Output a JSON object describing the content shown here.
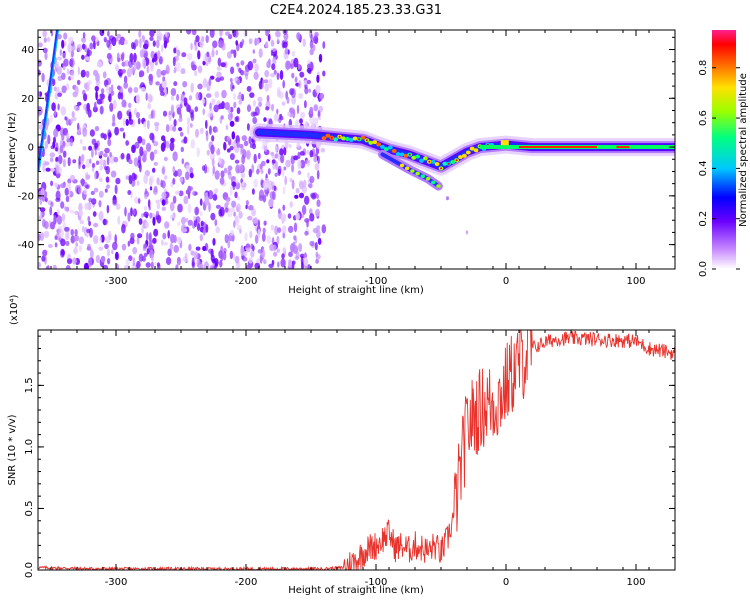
{
  "title": "C2E4.2024.185.23.33.G31",
  "colors": {
    "snr_line": "#e8322c",
    "axis": "#000000",
    "background": "#ffffff"
  },
  "chart_data": [
    {
      "type": "heatmap",
      "xlabel": "Height of straight line (km)",
      "ylabel": "Frequency (Hz)",
      "xlim": [
        -360,
        130
      ],
      "ylim": [
        -50,
        48
      ],
      "xticks": [
        -300,
        -200,
        -100,
        0,
        100
      ],
      "yticks": [
        -40,
        -20,
        0,
        20,
        40
      ],
      "colorbar": {
        "label": "Normalized spectral amplitude",
        "range": [
          0.0,
          0.95
        ],
        "ticks": [
          0.0,
          0.2,
          0.4,
          0.6,
          0.8
        ],
        "colormap": "rainbow (magenta-blue-cyan-green-yellow-orange-red-pink)"
      },
      "features": {
        "noise_region_x": [
          -360,
          -140
        ],
        "noise_amplitude": "0.0-0.25",
        "main_trace": [
          {
            "x": -190,
            "y": 6
          },
          {
            "x": -150,
            "y": 5
          },
          {
            "x": -130,
            "y": 4
          },
          {
            "x": -110,
            "y": 3
          },
          {
            "x": -90,
            "y": -1
          },
          {
            "x": -75,
            "y": -3
          },
          {
            "x": -60,
            "y": -6
          },
          {
            "x": -50,
            "y": -8
          },
          {
            "x": -40,
            "y": -5
          },
          {
            "x": -30,
            "y": -2
          },
          {
            "x": -20,
            "y": 0
          },
          {
            "x": 0,
            "y": 1
          },
          {
            "x": 20,
            "y": 0
          },
          {
            "x": 60,
            "y": 0
          },
          {
            "x": 100,
            "y": 0
          },
          {
            "x": 130,
            "y": 0
          }
        ],
        "secondary_branch": [
          {
            "x": -95,
            "y": -3
          },
          {
            "x": -75,
            "y": -9
          },
          {
            "x": -60,
            "y": -13
          },
          {
            "x": -52,
            "y": -16
          }
        ],
        "left_streak": [
          {
            "x": -345,
            "y": 48
          },
          {
            "x": -352,
            "y": 20
          },
          {
            "x": -360,
            "y": -10
          }
        ]
      }
    },
    {
      "type": "line",
      "xlabel": "Height of straight line (km)",
      "ylabel": "SNR (10 * v/v)",
      "y_multiplier": "(x10⁴)",
      "xlim": [
        -360,
        130
      ],
      "ylim": [
        0,
        1.95
      ],
      "xticks": [
        -300,
        -200,
        -100,
        0,
        100
      ],
      "yticks": [
        0.0,
        0.5,
        1.0,
        1.5
      ],
      "yticklabels": [
        "0.0",
        "0.5",
        "1.0",
        "1.5"
      ],
      "series": [
        {
          "x": [
            -360,
            -320,
            -280,
            -240,
            -200,
            -160,
            -140,
            -125,
            -115,
            -110,
            -105,
            -100,
            -95,
            -90,
            -85,
            -80,
            -75,
            -70,
            -65,
            -60,
            -55,
            -50,
            -45,
            -40,
            -35,
            -30,
            -25,
            -20,
            -15,
            -10,
            -5,
            0,
            5,
            10,
            20,
            30,
            40,
            60,
            80,
            100,
            110,
            120,
            130
          ],
          "y": [
            0.02,
            0.01,
            0.01,
            0.01,
            0.01,
            0.01,
            0.01,
            0.02,
            0.08,
            0.14,
            0.18,
            0.2,
            0.25,
            0.3,
            0.18,
            0.2,
            0.16,
            0.2,
            0.18,
            0.15,
            0.2,
            0.14,
            0.25,
            0.45,
            0.8,
            1.15,
            1.25,
            1.3,
            1.35,
            1.35,
            1.4,
            1.5,
            1.6,
            1.68,
            1.8,
            1.85,
            1.88,
            1.88,
            1.87,
            1.86,
            1.8,
            1.78,
            1.76
          ]
        }
      ]
    }
  ]
}
